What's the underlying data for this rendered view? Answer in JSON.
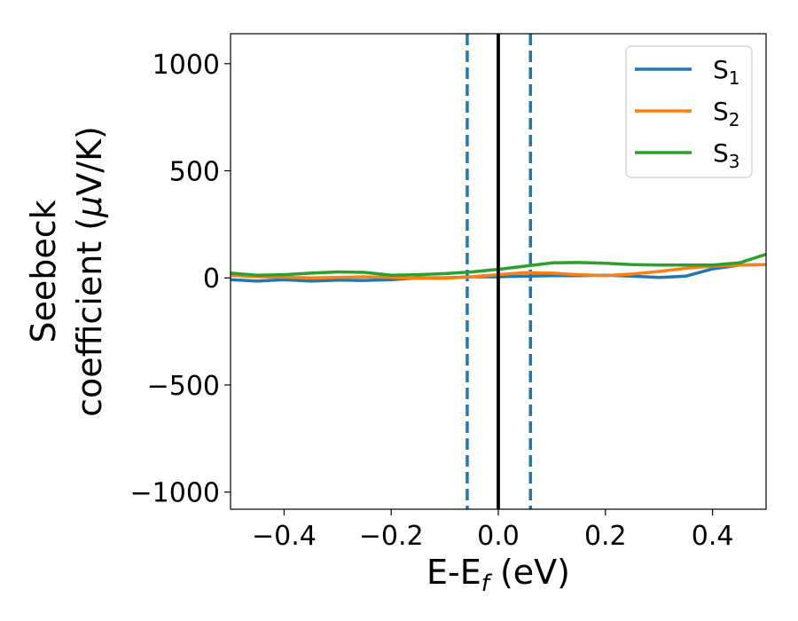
{
  "chart_data": {
    "type": "line",
    "xlabel": "E-E",
    "xlabel_sub": "f",
    "xlabel_unit": " (eV)",
    "ylabel_line1": "Seebeck",
    "ylabel_line2": "coefficient  (",
    "ylabel_mu": "μ",
    "ylabel_unit": "V/K)",
    "xlim": [
      -0.5,
      0.5
    ],
    "ylim": [
      -1080,
      1140
    ],
    "x_ticks": [
      -0.4,
      -0.2,
      0.0,
      0.2,
      0.4
    ],
    "x_tick_labels": [
      "−0.4",
      "−0.2",
      "0.0",
      "0.2",
      "0.4"
    ],
    "y_ticks": [
      -1000,
      -500,
      0,
      500,
      1000
    ],
    "y_tick_labels": [
      "−1000",
      "−500",
      "0",
      "500",
      "1000"
    ],
    "grid": false,
    "legend_position": "top-right",
    "vertical_lines": [
      {
        "x": 0.0,
        "style": "solid",
        "color": "#000000"
      },
      {
        "x": -0.058,
        "style": "dashed",
        "color": "#1f77b4"
      },
      {
        "x": 0.06,
        "style": "dashed",
        "color": "#1f77b4"
      }
    ],
    "series": [
      {
        "name": "S",
        "subscript": "1",
        "color": "#1f77b4",
        "points": [
          [
            -0.5,
            -8
          ],
          [
            -0.45,
            -15
          ],
          [
            -0.4,
            -8
          ],
          [
            -0.35,
            -15
          ],
          [
            -0.3,
            -10
          ],
          [
            -0.25,
            -12
          ],
          [
            -0.2,
            -8
          ],
          [
            -0.15,
            0
          ],
          [
            -0.1,
            0
          ],
          [
            -0.05,
            5
          ],
          [
            0.0,
            5
          ],
          [
            0.05,
            8
          ],
          [
            0.1,
            10
          ],
          [
            0.15,
            10
          ],
          [
            0.2,
            12
          ],
          [
            0.25,
            8
          ],
          [
            0.3,
            2
          ],
          [
            0.35,
            8
          ],
          [
            0.4,
            42
          ],
          [
            0.45,
            60
          ],
          [
            0.5,
            62
          ]
        ]
      },
      {
        "name": "S",
        "subscript": "2",
        "color": "#ff7f0e",
        "points": [
          [
            -0.5,
            12
          ],
          [
            -0.45,
            5
          ],
          [
            -0.4,
            3
          ],
          [
            -0.35,
            0
          ],
          [
            -0.3,
            2
          ],
          [
            -0.25,
            5
          ],
          [
            -0.2,
            2
          ],
          [
            -0.15,
            -2
          ],
          [
            -0.1,
            -2
          ],
          [
            -0.05,
            5
          ],
          [
            0.0,
            15
          ],
          [
            0.05,
            25
          ],
          [
            0.1,
            22
          ],
          [
            0.15,
            15
          ],
          [
            0.2,
            10
          ],
          [
            0.25,
            18
          ],
          [
            0.3,
            30
          ],
          [
            0.35,
            45
          ],
          [
            0.4,
            55
          ],
          [
            0.45,
            60
          ],
          [
            0.5,
            62
          ]
        ]
      },
      {
        "name": "S",
        "subscript": "3",
        "color": "#2ca02c",
        "points": [
          [
            -0.5,
            22
          ],
          [
            -0.45,
            12
          ],
          [
            -0.4,
            15
          ],
          [
            -0.35,
            22
          ],
          [
            -0.3,
            28
          ],
          [
            -0.25,
            26
          ],
          [
            -0.2,
            12
          ],
          [
            -0.15,
            15
          ],
          [
            -0.1,
            20
          ],
          [
            -0.05,
            28
          ],
          [
            0.0,
            40
          ],
          [
            0.05,
            55
          ],
          [
            0.1,
            70
          ],
          [
            0.15,
            72
          ],
          [
            0.2,
            68
          ],
          [
            0.25,
            62
          ],
          [
            0.3,
            60
          ],
          [
            0.35,
            60
          ],
          [
            0.4,
            60
          ],
          [
            0.45,
            70
          ],
          [
            0.5,
            110
          ]
        ]
      }
    ]
  }
}
